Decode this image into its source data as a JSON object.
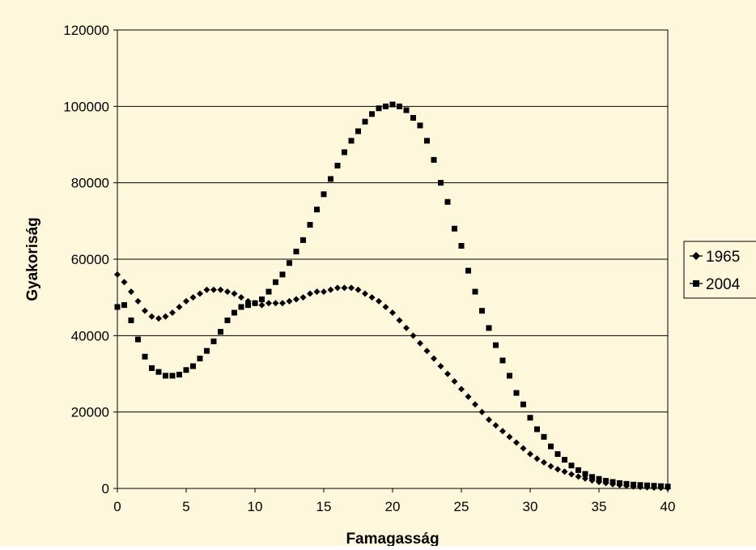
{
  "chart_data": {
    "type": "scatter",
    "xlabel": "Famagasság",
    "ylabel": "Gyakoriság",
    "xlim": [
      0,
      40
    ],
    "ylim": [
      0,
      120000
    ],
    "x_ticks": [
      "0",
      "5",
      "10",
      "15",
      "20",
      "25",
      "30",
      "35",
      "40"
    ],
    "y_ticks": [
      "0",
      "20000",
      "40000",
      "60000",
      "80000",
      "100000",
      "120000"
    ],
    "grid": "horizontal",
    "legend": "right",
    "background": "#fdf8dc",
    "plot_background": "#fdf8dc",
    "series": [
      {
        "name": "1965",
        "marker": "diamond",
        "color": "#000000",
        "x": [
          0,
          0.5,
          1,
          1.5,
          2,
          2.5,
          3,
          3.5,
          4,
          4.5,
          5,
          5.5,
          6,
          6.5,
          7,
          7.5,
          8,
          8.5,
          9,
          9.5,
          10,
          10.5,
          11,
          11.5,
          12,
          12.5,
          13,
          13.5,
          14,
          14.5,
          15,
          15.5,
          16,
          16.5,
          17,
          17.5,
          18,
          18.5,
          19,
          19.5,
          20,
          20.5,
          21,
          21.5,
          22,
          22.5,
          23,
          23.5,
          24,
          24.5,
          25,
          25.5,
          26,
          26.5,
          27,
          27.5,
          28,
          28.5,
          29,
          29.5,
          30,
          30.5,
          31,
          31.5,
          32,
          32.5,
          33,
          33.5,
          34,
          34.5,
          35,
          35.5,
          36,
          36.5,
          37,
          37.5,
          38,
          38.5,
          39,
          39.5,
          40
        ],
        "y": [
          56000,
          54000,
          51500,
          49000,
          46500,
          45000,
          44500,
          45000,
          46000,
          47500,
          49000,
          50000,
          51000,
          52000,
          52000,
          52000,
          51500,
          51000,
          50000,
          49000,
          48500,
          48000,
          48500,
          48500,
          48500,
          49000,
          49500,
          50000,
          51000,
          51500,
          51500,
          52000,
          52500,
          52500,
          52500,
          52000,
          51000,
          50000,
          49000,
          47500,
          46000,
          44000,
          42000,
          40000,
          38000,
          36000,
          34000,
          32000,
          30000,
          28000,
          26000,
          24000,
          22000,
          20000,
          18000,
          16500,
          15000,
          13500,
          12000,
          10500,
          9000,
          7800,
          6800,
          5800,
          5000,
          4400,
          3700,
          3100,
          2600,
          2100,
          1700,
          1400,
          1100,
          900,
          700,
          500,
          400,
          300,
          200,
          150,
          100
        ]
      },
      {
        "name": "2004",
        "marker": "square",
        "color": "#000000",
        "x": [
          0,
          0.5,
          1,
          1.5,
          2,
          2.5,
          3,
          3.5,
          4,
          4.5,
          5,
          5.5,
          6,
          6.5,
          7,
          7.5,
          8,
          8.5,
          9,
          9.5,
          10,
          10.5,
          11,
          11.5,
          12,
          12.5,
          13,
          13.5,
          14,
          14.5,
          15,
          15.5,
          16,
          16.5,
          17,
          17.5,
          18,
          18.5,
          19,
          19.5,
          20,
          20.5,
          21,
          21.5,
          22,
          22.5,
          23,
          23.5,
          24,
          24.5,
          25,
          25.5,
          26,
          26.5,
          27,
          27.5,
          28,
          28.5,
          29,
          29.5,
          30,
          30.5,
          31,
          31.5,
          32,
          32.5,
          33,
          33.5,
          34,
          34.5,
          35,
          35.5,
          36,
          36.5,
          37,
          37.5,
          38,
          38.5,
          39,
          39.5,
          40
        ],
        "y": [
          47500,
          48000,
          44000,
          39000,
          34500,
          31500,
          30500,
          29500,
          29500,
          29800,
          31000,
          32000,
          34000,
          36000,
          38500,
          41000,
          44000,
          46000,
          47500,
          48000,
          48500,
          49500,
          51500,
          54000,
          56000,
          59000,
          62000,
          65000,
          69000,
          73000,
          77000,
          81000,
          84500,
          88000,
          91000,
          93500,
          96000,
          98000,
          99500,
          100000,
          100500,
          100000,
          99000,
          97000,
          95000,
          91000,
          86000,
          80000,
          75000,
          68000,
          63500,
          57000,
          51500,
          46500,
          42000,
          37500,
          33500,
          29500,
          25000,
          22000,
          18500,
          15500,
          13500,
          11000,
          9000,
          7500,
          6000,
          4800,
          3800,
          3000,
          2500,
          2000,
          1700,
          1400,
          1200,
          1000,
          900,
          800,
          700,
          600,
          500
        ]
      }
    ]
  }
}
